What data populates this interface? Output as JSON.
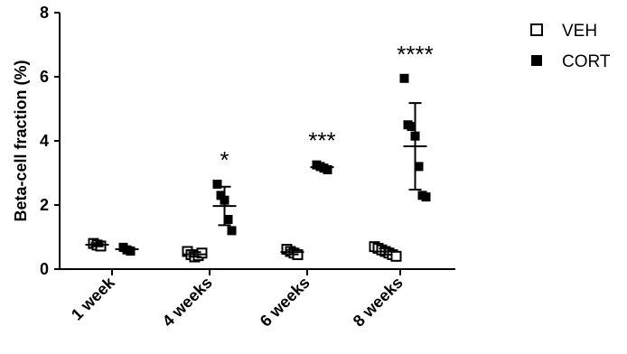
{
  "chart_data": {
    "type": "scatter",
    "title": "",
    "xlabel": "",
    "ylabel": "Beta-cell fraction (%)",
    "ylim": [
      0,
      8
    ],
    "yticks": [
      "0",
      "2",
      "4",
      "6",
      "8"
    ],
    "categories": [
      "1 week",
      "4 weeks",
      "6 weeks",
      "8 weeks"
    ],
    "grid": false,
    "legend_position": "top-right",
    "series": [
      {
        "name": "VEH",
        "marker": "open-square",
        "color": "#000000",
        "points": [
          [
            0.8,
            0.75,
            0.72
          ],
          [
            0.55,
            0.45,
            0.38,
            0.42,
            0.5
          ],
          [
            0.62,
            0.55,
            0.5,
            0.45
          ],
          [
            0.7,
            0.65,
            0.6,
            0.55,
            0.5,
            0.45,
            0.4
          ]
        ],
        "mean": [
          0.76,
          0.46,
          0.53,
          0.55
        ],
        "sd": [
          0.05,
          0.07,
          0.07,
          0.1
        ]
      },
      {
        "name": "CORT",
        "marker": "filled-square",
        "color": "#000000",
        "points": [
          [
            0.68,
            0.6,
            0.56
          ],
          [
            2.65,
            2.3,
            2.15,
            1.55,
            1.2
          ],
          [
            3.25,
            3.2,
            3.15,
            3.1
          ],
          [
            5.95,
            4.5,
            4.45,
            4.15,
            3.2,
            2.3,
            2.25
          ]
        ],
        "mean": [
          0.62,
          1.97,
          3.18,
          3.83
        ],
        "sd": [
          0.06,
          0.6,
          0.07,
          1.35
        ]
      }
    ],
    "annotations": [
      "",
      "*",
      "***",
      "****"
    ]
  }
}
